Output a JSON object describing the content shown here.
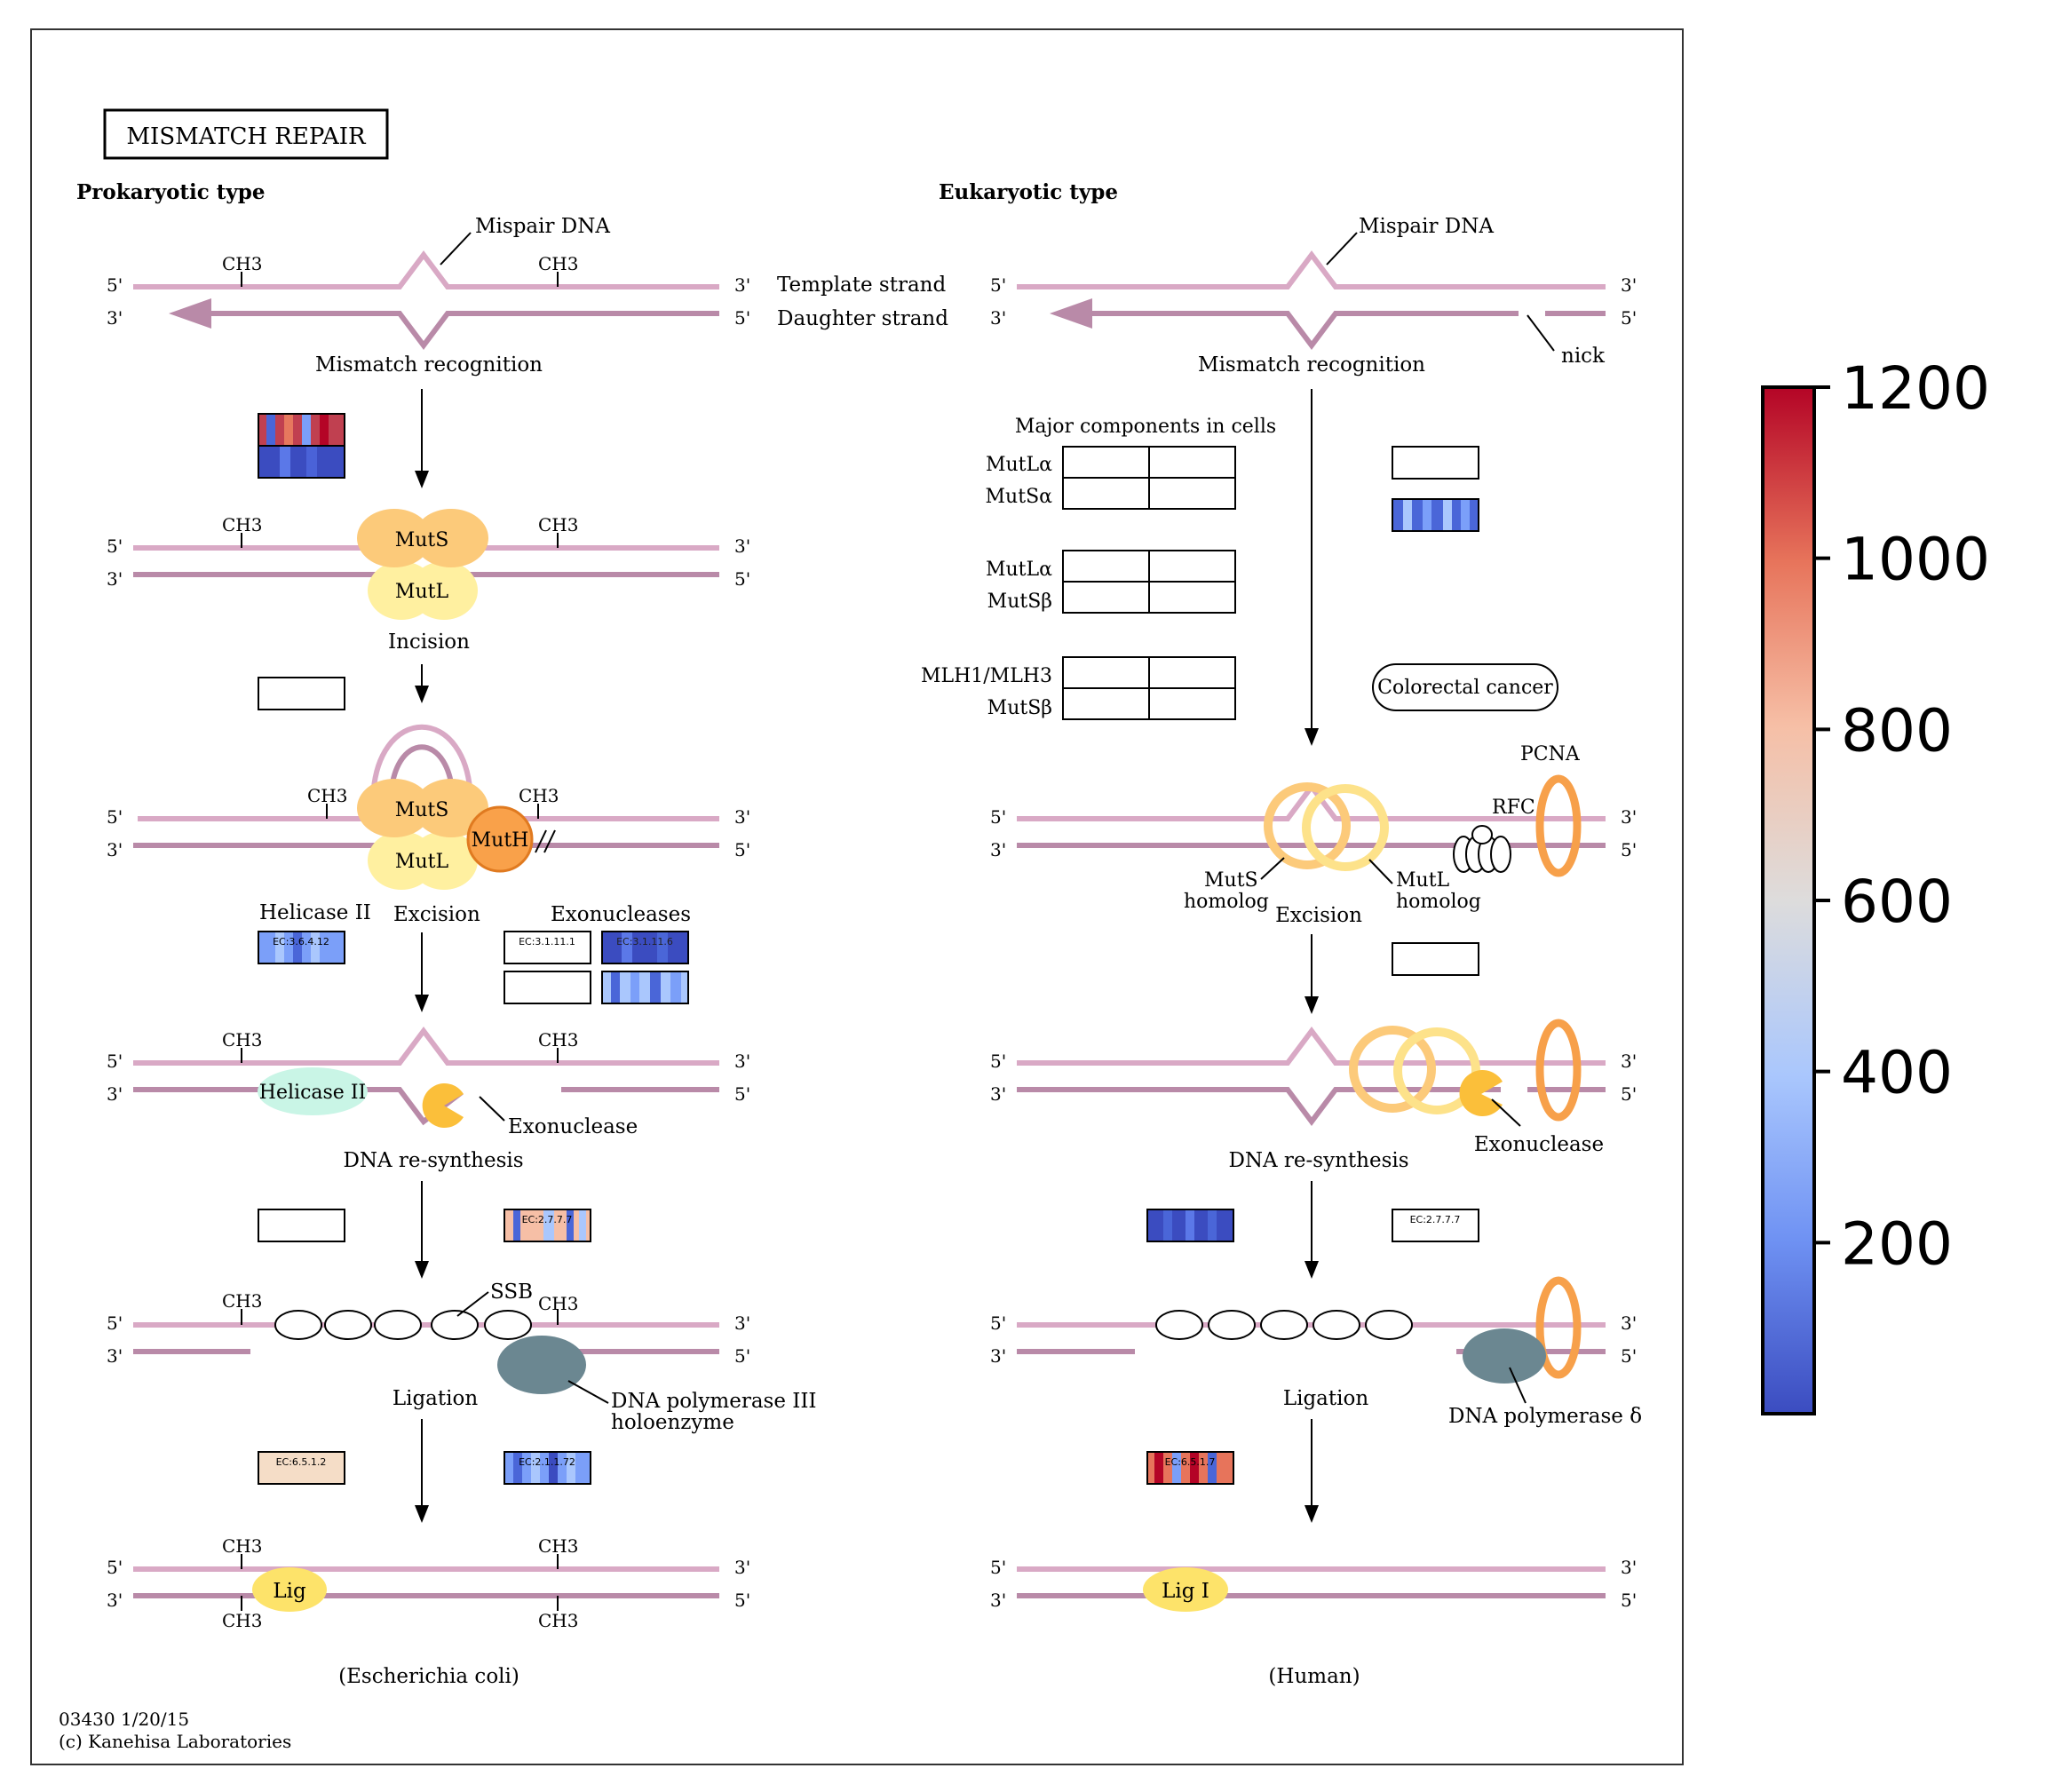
{
  "title": "MISMATCH REPAIR",
  "colors": {
    "strand_light": "#d9a9c5",
    "strand_dark": "#b98aa8",
    "muts": "#fcca7a",
    "mutl": "#fff0a0",
    "muth": "#f9a14a",
    "helicase": "#c9f5e6",
    "exonuclease": "#fbbf3a",
    "polymerase": "#6b8791",
    "ring_orange": "#f7a04a",
    "ring_yellow": "#fde28a",
    "lig": "#fde36a"
  },
  "prokaryotic": {
    "heading": "Prokaryotic type",
    "mispair": "Mispair DNA",
    "template_strand": "Template strand",
    "daughter_strand": "Daughter strand",
    "mismatch_recognition": "Mismatch recognition",
    "incision": "Incision",
    "excision": "Excision",
    "resynthesis": "DNA re-synthesis",
    "ligation": "Ligation",
    "helicase_label": "Helicase II",
    "exonucleases_label": "Exonucleases",
    "exonuclease": "Exonuclease",
    "ssb": "SSB",
    "dna_pol": "DNA polymerase III",
    "dna_pol2": "holoenzyme",
    "muts": "MutS",
    "mutl": "MutL",
    "muth": "MutH",
    "helicase_protein": "Helicase II",
    "lig": "Lig",
    "organism": "(Escherichia coli)",
    "ch3": "CH3",
    "p5": "5'",
    "p3": "3'"
  },
  "eukaryotic": {
    "heading": "Eukaryotic type",
    "mispair": "Mispair DNA",
    "nick": "nick",
    "mismatch_recognition": "Mismatch recognition",
    "major_components": "Major components in cells",
    "mutla1": "MutLα",
    "mutsa": "MutSα",
    "mutla2": "MutLα",
    "mutsb1": "MutSβ",
    "mlh": "MLH1/MLH3",
    "mutsb2": "MutSβ",
    "colorectal": "Colorectal cancer",
    "pcna": "PCNA",
    "rfc": "RFC",
    "muts_homolog1": "MutS",
    "muts_homolog2": "homolog",
    "mutl_homolog1": "MutL",
    "mutl_homolog2": "homolog",
    "excision": "Excision",
    "exonuclease": "Exonuclease",
    "resynthesis": "DNA re-synthesis",
    "ligation": "Ligation",
    "dna_pol": "DNA polymerase δ",
    "lig": "Lig I",
    "organism": "(Human)"
  },
  "ec_labels": {
    "helicase": "EC:3.6.4.12",
    "exo1": "EC:3.1.11.1",
    "exo2": "EC:3.1.11.6",
    "pro_resynth": "EC:2.7.7.7",
    "euk_resynth": "EC:2.7.7.7",
    "pro_lig": "EC:6.5.1.2",
    "pro_lig2": "EC:2.1.1.72",
    "euk_lig": "EC:6.5.1.7"
  },
  "footer": {
    "id": "03430 1/20/15",
    "copyright": "(c) Kanehisa Laboratories"
  },
  "colorbar": {
    "ticks": [
      "1200",
      "1000",
      "800",
      "600",
      "400",
      "200"
    ],
    "tick_values": [
      1200,
      1000,
      800,
      600,
      400,
      200
    ],
    "min": 0,
    "max": 1200,
    "colors": [
      "#3b4cc0",
      "#7b9ff9",
      "#c0d4f5",
      "#dddcdc",
      "#f2cbb7",
      "#ee8468",
      "#b40426"
    ]
  }
}
